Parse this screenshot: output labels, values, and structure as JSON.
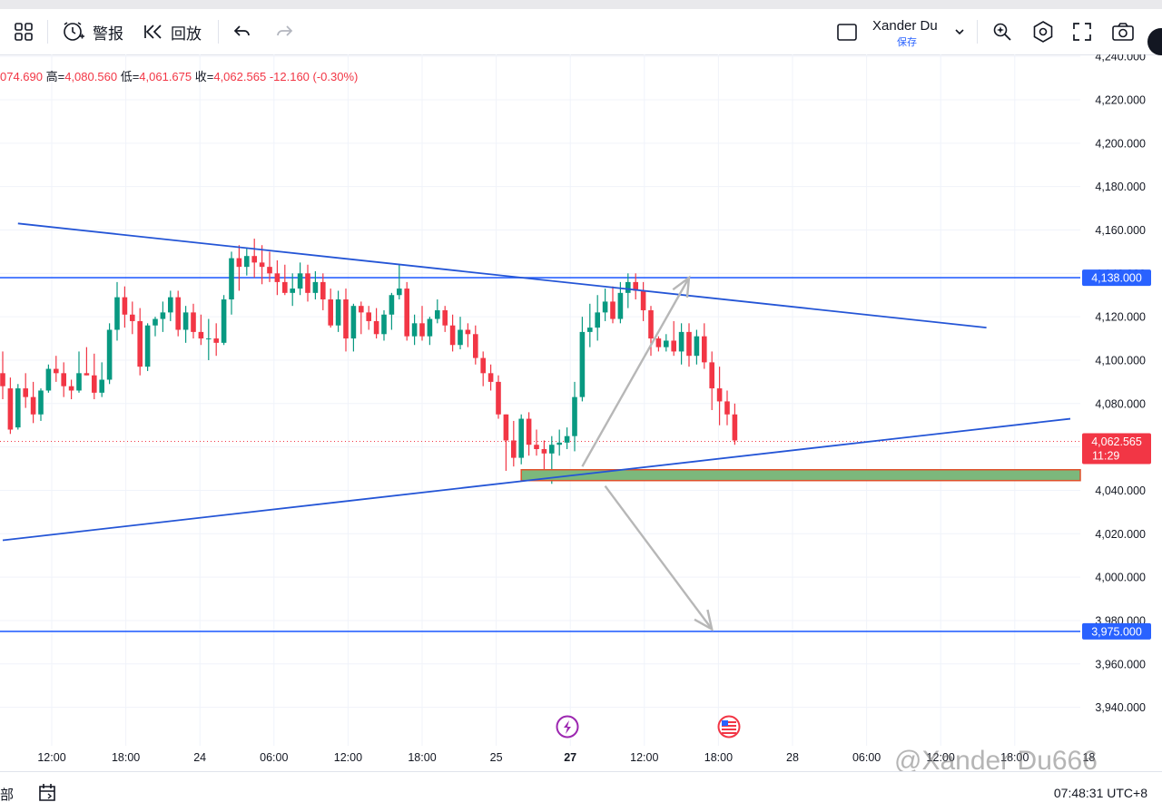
{
  "toolbar": {
    "alert_label": "警报",
    "replay_label": "回放",
    "profile_name": "Xander Du",
    "profile_sub": "保存"
  },
  "ohlc": {
    "open": "074.690",
    "high_label": "高=",
    "high": "4,080.560",
    "low_label": "低=",
    "low": "4,061.675",
    "close_label": "收=",
    "close": "4,062.565",
    "change": "-12.160 (-0.30%)"
  },
  "bottom": {
    "left_text": "部",
    "time": "07:48:31 UTC+8"
  },
  "watermark": "@Xander Du666",
  "colors": {
    "up": "#089981",
    "down": "#f23645",
    "trend": "#2455d6",
    "hline": "#2962ff",
    "zone_fill": "#7cb87c",
    "zone_border": "#e0502a",
    "arrow": "#b7b7b7"
  },
  "chart_data": {
    "type": "candlestick",
    "y_ticks": [
      "4,240.000",
      "4,220.000",
      "4,200.000",
      "4,180.000",
      "4,160.000",
      "4,140.000",
      "4,120.000",
      "4,100.000",
      "4,080.000",
      "4,060.000",
      "4,040.000",
      "4,020.000",
      "4,000.000",
      "3,980.000",
      "3,960.000",
      "3,940.000"
    ],
    "x_ticks": [
      "12:00",
      "18:00",
      "24",
      "06:00",
      "12:00",
      "18:00",
      "25",
      "27",
      "12:00",
      "18:00",
      "28",
      "06:00",
      "12:00",
      "18:00",
      "18"
    ],
    "price_labels": [
      {
        "text": "4,138.000",
        "value": 4138,
        "color": "#2962ff"
      },
      {
        "text": "3,975.000",
        "value": 3975,
        "color": "#2962ff"
      },
      {
        "text": "4,062.565",
        "value": 4062.565,
        "color": "#f23645",
        "sub": "11:29"
      }
    ],
    "horizontal_lines": [
      4138,
      3975
    ],
    "last_price": 4062.565,
    "trendlines": [
      {
        "name": "upper",
        "from": [
          2,
          4163
        ],
        "to": [
          129,
          4115
        ]
      },
      {
        "name": "lower",
        "from": [
          0,
          4017
        ],
        "to": [
          140,
          4073
        ]
      }
    ],
    "zone": {
      "x_from": 68,
      "x_to": 140,
      "y_low": 4044.5,
      "y_high": 4049.5
    },
    "arrows": [
      {
        "from": [
          76,
          4051
        ],
        "to": [
          90,
          4138
        ]
      },
      {
        "from": [
          79,
          4042
        ],
        "to": [
          93,
          3976
        ]
      }
    ],
    "candles": [
      [
        4094,
        4104,
        4082,
        4088
      ],
      [
        4087,
        4092,
        4066,
        4068
      ],
      [
        4069,
        4089,
        4068,
        4087
      ],
      [
        4087,
        4094,
        4078,
        4083
      ],
      [
        4083,
        4090,
        4071,
        4075
      ],
      [
        4075,
        4087,
        4072,
        4086
      ],
      [
        4086,
        4098,
        4085,
        4096
      ],
      [
        4096,
        4102,
        4090,
        4094
      ],
      [
        4094,
        4099,
        4083,
        4088
      ],
      [
        4088,
        4091,
        4082,
        4086
      ],
      [
        4086,
        4104,
        4085,
        4094
      ],
      [
        4094,
        4106,
        4093,
        4093
      ],
      [
        4093,
        4103,
        4082,
        4085
      ],
      [
        4085,
        4099,
        4083,
        4091
      ],
      [
        4091,
        4117,
        4089,
        4114
      ],
      [
        4114,
        4136,
        4109,
        4129
      ],
      [
        4129,
        4134,
        4115,
        4121
      ],
      [
        4121,
        4127,
        4112,
        4118
      ],
      [
        4118,
        4124,
        4093,
        4097
      ],
      [
        4097,
        4117,
        4095,
        4116
      ],
      [
        4116,
        4120,
        4111,
        4119
      ],
      [
        4119,
        4127,
        4113,
        4122
      ],
      [
        4122,
        4132,
        4118,
        4129
      ],
      [
        4129,
        4132,
        4111,
        4114
      ],
      [
        4114,
        4125,
        4108,
        4122
      ],
      [
        4122,
        4126,
        4110,
        4113
      ],
      [
        4113,
        4121,
        4107,
        4110
      ],
      [
        4110,
        4119,
        4100,
        4110
      ],
      [
        4110,
        4117,
        4102,
        4108
      ],
      [
        4108,
        4130,
        4107,
        4128
      ],
      [
        4128,
        4150,
        4121,
        4147
      ],
      [
        4147,
        4153,
        4132,
        4143
      ],
      [
        4143,
        4152,
        4139,
        4148
      ],
      [
        4148,
        4156,
        4138,
        4145
      ],
      [
        4145,
        4153,
        4135,
        4143
      ],
      [
        4143,
        4150,
        4136,
        4140
      ],
      [
        4140,
        4146,
        4130,
        4136
      ],
      [
        4136,
        4144,
        4130,
        4131
      ],
      [
        4131,
        4140,
        4125,
        4133
      ],
      [
        4133,
        4145,
        4130,
        4140
      ],
      [
        4140,
        4144,
        4127,
        4131
      ],
      [
        4131,
        4141,
        4128,
        4136
      ],
      [
        4136,
        4140,
        4123,
        4128
      ],
      [
        4128,
        4133,
        4115,
        4116
      ],
      [
        4116,
        4132,
        4113,
        4128
      ],
      [
        4128,
        4133,
        4104,
        4110
      ],
      [
        4110,
        4126,
        4104,
        4125
      ],
      [
        4125,
        4127,
        4112,
        4122
      ],
      [
        4122,
        4125,
        4114,
        4118
      ],
      [
        4118,
        4124,
        4110,
        4112
      ],
      [
        4112,
        4123,
        4109,
        4121
      ],
      [
        4121,
        4131,
        4114,
        4130
      ],
      [
        4130,
        4144,
        4128,
        4133
      ],
      [
        4133,
        4136,
        4109,
        4111
      ],
      [
        4111,
        4121,
        4107,
        4117
      ],
      [
        4117,
        4125,
        4109,
        4111
      ],
      [
        4111,
        4120,
        4107,
        4119
      ],
      [
        4119,
        4128,
        4117,
        4123
      ],
      [
        4123,
        4125,
        4113,
        4116
      ],
      [
        4116,
        4121,
        4104,
        4107
      ],
      [
        4107,
        4120,
        4105,
        4114
      ],
      [
        4114,
        4117,
        4106,
        4112
      ],
      [
        4112,
        4116,
        4098,
        4101
      ],
      [
        4101,
        4104,
        4088,
        4094
      ],
      [
        4094,
        4098,
        4086,
        4090
      ],
      [
        4090,
        4093,
        4073,
        4075
      ],
      [
        4075,
        4075,
        4049,
        4063
      ],
      [
        4063,
        4072,
        4051,
        4055
      ],
      [
        4055,
        4075,
        4052,
        4073
      ],
      [
        4073,
        4076,
        4056,
        4061
      ],
      [
        4061,
        4068,
        4056,
        4059
      ],
      [
        4059,
        4063,
        4049,
        4057
      ],
      [
        4057,
        4065,
        4043,
        4061
      ],
      [
        4061,
        4068,
        4056,
        4062
      ],
      [
        4062,
        4069,
        4059,
        4065
      ],
      [
        4065,
        4090,
        4058,
        4083
      ],
      [
        4083,
        4120,
        4081,
        4113
      ],
      [
        4113,
        4126,
        4106,
        4115
      ],
      [
        4115,
        4130,
        4109,
        4122
      ],
      [
        4122,
        4133,
        4118,
        4127
      ],
      [
        4127,
        4134,
        4117,
        4119
      ],
      [
        4119,
        4136,
        4117,
        4131
      ],
      [
        4131,
        4140,
        4124,
        4136
      ],
      [
        4136,
        4140,
        4128,
        4132
      ],
      [
        4132,
        4136,
        4118,
        4123
      ],
      [
        4123,
        4125,
        4102,
        4110
      ],
      [
        4110,
        4111,
        4104,
        4106
      ],
      [
        4106,
        4112,
        4104,
        4109
      ],
      [
        4109,
        4118,
        4102,
        4104
      ],
      [
        4104,
        4117,
        4098,
        4113
      ],
      [
        4113,
        4117,
        4097,
        4102
      ],
      [
        4102,
        4114,
        4098,
        4111
      ],
      [
        4111,
        4117,
        4096,
        4099
      ],
      [
        4099,
        4104,
        4077,
        4087
      ],
      [
        4087,
        4097,
        4070,
        4081
      ],
      [
        4081,
        4086,
        4070,
        4075
      ],
      [
        4075,
        4080,
        4061,
        4063
      ]
    ]
  }
}
